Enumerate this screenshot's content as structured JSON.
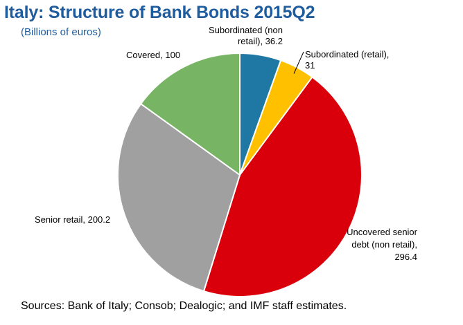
{
  "header": {
    "title": "Italy: Structure of Bank Bonds 2015Q2",
    "subtitle": "(Billions of euros)"
  },
  "footer": {
    "source": "Sources: Bank of Italy; Consob; Dealogic; and IMF staff estimates."
  },
  "chart_data": {
    "type": "pie",
    "title": "Italy: Structure of Bank Bonds 2015Q2",
    "subtitle": "(Billions of euros)",
    "unit": "Billions of euros",
    "start": "12 o'clock, clockwise",
    "slices": [
      {
        "label": "Subordinated (non retail)",
        "value": 36.2,
        "color": "#1f77a4",
        "label_lines": [
          "Subordinated (non",
          "retail), 36.2"
        ]
      },
      {
        "label": "Subordinated (retail)",
        "value": 31,
        "color": "#ffc000",
        "label_lines": [
          "Subordinated (retail),",
          "31"
        ]
      },
      {
        "label": "Uncovered senior debt (non retail)",
        "value": 296.4,
        "color": "#d9000b",
        "label_lines": [
          "Uncovered senior",
          "debt (non retail),",
          "296.4"
        ]
      },
      {
        "label": "Senior retail",
        "value": 200.2,
        "color": "#a0a0a0",
        "label_lines": [
          "Senior retail, 200.2"
        ]
      },
      {
        "label": "Covered",
        "value": 100,
        "color": "#77b564",
        "label_lines": [
          "Covered, 100"
        ]
      }
    ],
    "legend": "none"
  }
}
